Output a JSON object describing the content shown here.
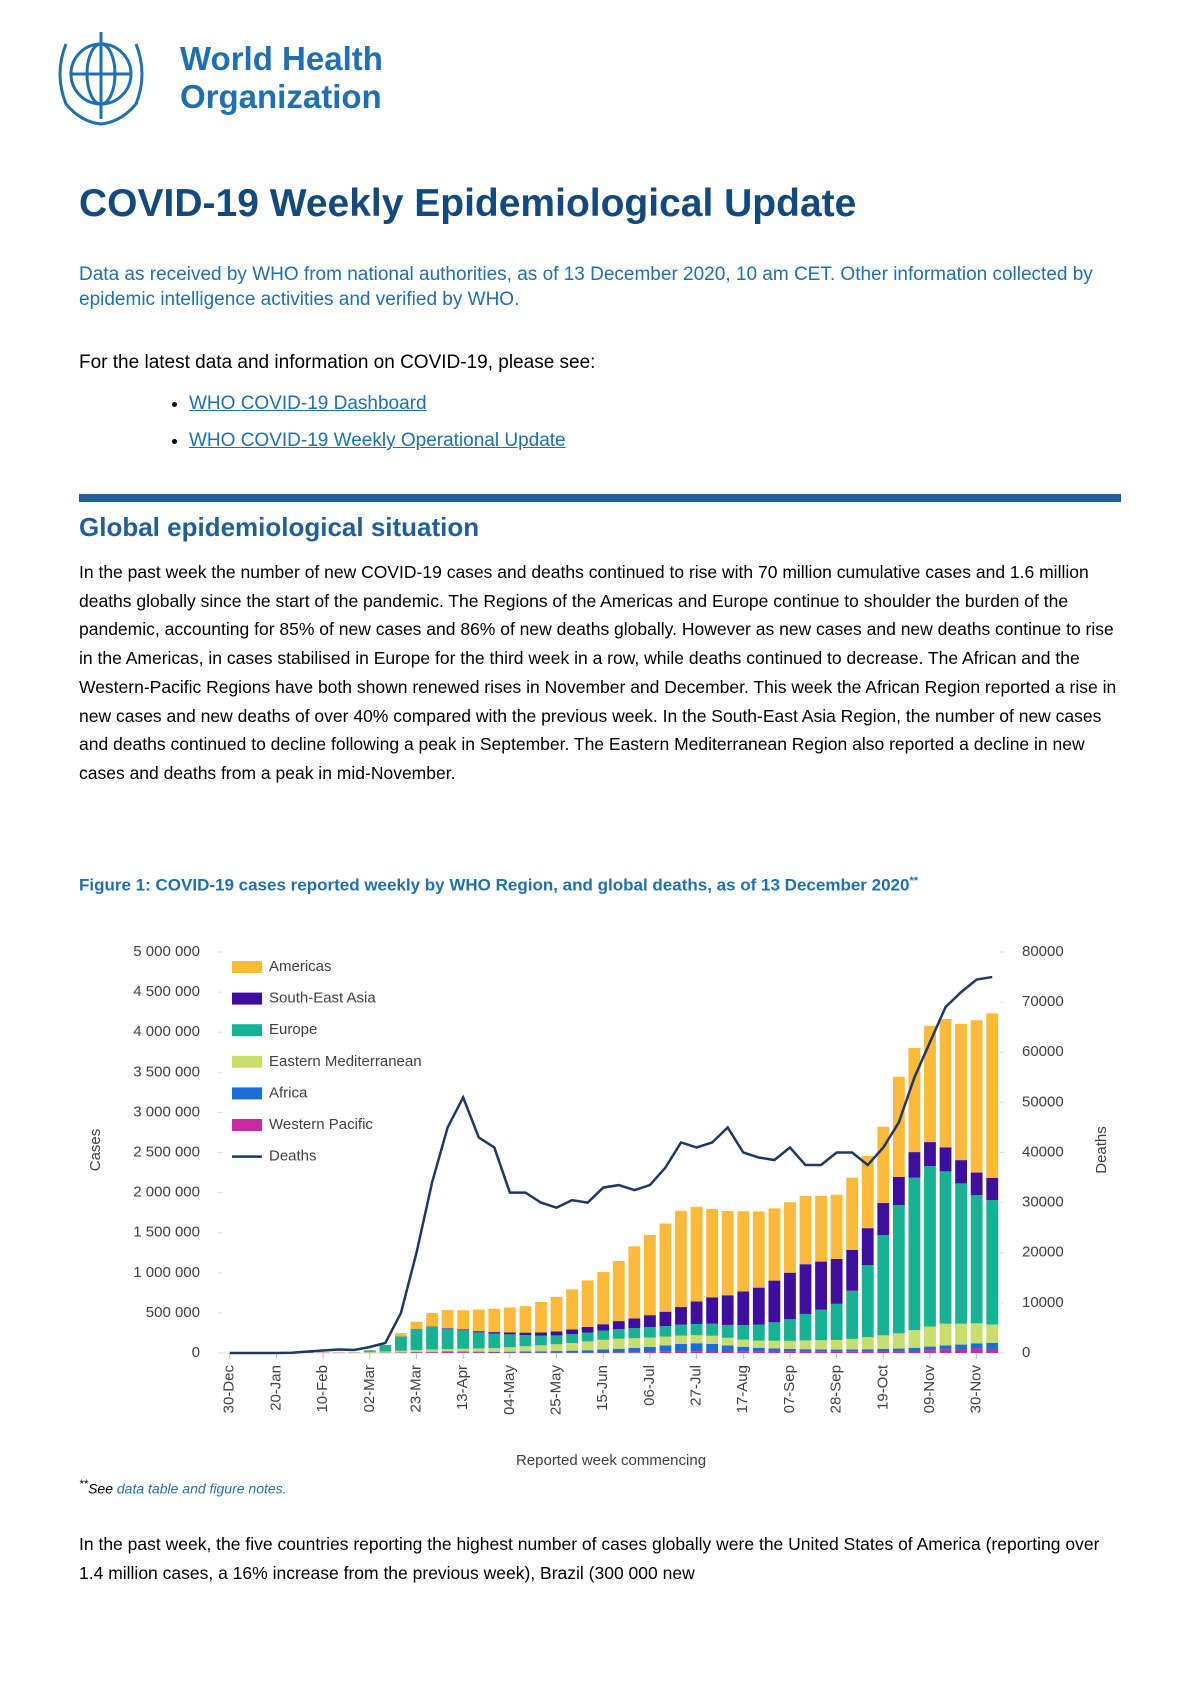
{
  "header": {
    "org_line1": "World Health",
    "org_line2": "Organization"
  },
  "title": "COVID-19 Weekly Epidemiological Update",
  "subtitle": "Data as received by WHO from national authorities, as of 13 December 2020, 10 am CET. Other information collected by epidemic intelligence activities and verified by WHO.",
  "links_intro": "For the latest data and information on COVID-19, please see:",
  "links": [
    "WHO COVID-19 Dashboard",
    "WHO COVID-19 Weekly Operational Update"
  ],
  "section_heading": "Global epidemiological situation",
  "paragraph": "In the past week the number of new COVID-19  cases and deaths continued to rise with 70 million cumulative cases and 1.6 million deaths globally since the start of the pandemic. The Regions of the Americas and Europe continue to shoulder the burden of the pandemic, accounting for 85% of new cases and 86% of new deaths globally. However as new cases and new deaths continue to rise in the Americas, in cases stabilised in Europe for the third week in a row, while deaths continued to decrease. The African and the Western-Pacific Regions have both shown renewed rises in November and December. This week the African Region reported a rise in new cases and new deaths of over 40% compared with the previous week. In the South-East Asia Region, the number of new cases and deaths continued to decline following a peak in September. The Eastern Mediterranean Region also reported a decline in new cases and deaths from a peak in mid-November.",
  "figure_caption": "Figure 1: COVID-19 cases reported weekly by WHO Region, and global deaths, as of 13 December 2020",
  "figure_caption_mark": "**",
  "chart_data": {
    "type": "stacked-bar-line",
    "x_label": "Reported week commencing",
    "y_label": "Cases",
    "y2_label": "Deaths",
    "categories": [
      "30-Dec",
      null,
      null,
      "20-Jan",
      null,
      null,
      "10-Feb",
      null,
      null,
      "02-Mar",
      null,
      null,
      "23-Mar",
      null,
      null,
      "13-Apr",
      null,
      null,
      "04-May",
      null,
      null,
      "25-May",
      null,
      null,
      "15-Jun",
      null,
      null,
      "06-Jul",
      null,
      null,
      "27-Jul",
      null,
      null,
      "17-Aug",
      null,
      null,
      "07-Sep",
      null,
      null,
      "28-Sep",
      null,
      null,
      "19-Oct",
      null,
      null,
      "09-Nov",
      null,
      null,
      "30-Nov",
      null
    ],
    "ylim": [
      0,
      5000000
    ],
    "yticks": [
      0,
      {
        "value": 500000,
        "label": "500 000"
      },
      {
        "value": 1000000,
        "label": "1 000 000"
      },
      {
        "value": 1500000,
        "label": "1 500 000"
      },
      {
        "value": 2000000,
        "label": "2 000 000"
      },
      {
        "value": 2500000,
        "label": "2 500 000"
      },
      {
        "value": 3000000,
        "label": "3 000 000"
      },
      {
        "value": 3500000,
        "label": "3 500 000"
      },
      {
        "value": 4000000,
        "label": "4 000 000"
      },
      {
        "value": 4500000,
        "label": "4 500 000"
      },
      {
        "value": 5000000,
        "label": "5 000 000"
      }
    ],
    "y2lim": [
      0,
      80000
    ],
    "y2ticks": [
      0,
      10000,
      20000,
      30000,
      40000,
      50000,
      60000,
      70000,
      80000
    ],
    "legend": "top-left",
    "series": [
      {
        "name": "Americas",
        "color": "#FDB93A",
        "type": "bar",
        "values": [
          0,
          0,
          0,
          5,
          1,
          2,
          0,
          0,
          10,
          100,
          1000,
          40000,
          90000,
          170000,
          230000,
          240000,
          270000,
          290000,
          310000,
          330000,
          380000,
          430000,
          500000,
          580000,
          650000,
          750000,
          900000,
          1000000,
          1100000,
          1200000,
          1180000,
          1100000,
          1050000,
          1000000,
          950000,
          900000,
          880000,
          850000,
          820000,
          800000,
          900000,
          900000,
          950000,
          1250000,
          1300000,
          1450000,
          1600000,
          1700000,
          1900000,
          2050000
        ]
      },
      {
        "name": "South-East Asia",
        "color": "#3E0E9E",
        "type": "bar",
        "values": [
          0,
          0,
          0,
          0,
          0,
          0,
          0,
          0,
          0,
          0,
          500,
          1000,
          3000,
          5000,
          8000,
          10000,
          15000,
          20000,
          25000,
          30000,
          40000,
          50000,
          60000,
          70000,
          80000,
          100000,
          120000,
          150000,
          180000,
          220000,
          280000,
          330000,
          370000,
          420000,
          460000,
          520000,
          580000,
          620000,
          600000,
          560000,
          510000,
          460000,
          400000,
          350000,
          320000,
          300000,
          300000,
          290000,
          280000,
          280000
        ]
      },
      {
        "name": "Europe",
        "color": "#16B293",
        "type": "bar",
        "values": [
          0,
          0,
          0,
          0,
          0,
          0,
          0,
          0,
          2000,
          20000,
          80000,
          180000,
          260000,
          280000,
          250000,
          230000,
          200000,
          180000,
          160000,
          140000,
          120000,
          110000,
          110000,
          110000,
          115000,
          120000,
          125000,
          130000,
          130000,
          135000,
          140000,
          150000,
          160000,
          180000,
          200000,
          230000,
          270000,
          330000,
          380000,
          450000,
          600000,
          900000,
          1250000,
          1600000,
          1900000,
          2000000,
          1900000,
          1750000,
          1600000,
          1550000
        ]
      },
      {
        "name": "Eastern Mediterranean",
        "color": "#C8DD6C",
        "type": "bar",
        "values": [
          0,
          0,
          0,
          0,
          0,
          0,
          0,
          0,
          5000,
          10000,
          15000,
          20000,
          25000,
          28000,
          30000,
          35000,
          40000,
          45000,
          55000,
          65000,
          75000,
          85000,
          95000,
          110000,
          120000,
          125000,
          120000,
          115000,
          110000,
          105000,
          100000,
          100000,
          95000,
          90000,
          90000,
          95000,
          100000,
          110000,
          115000,
          120000,
          130000,
          150000,
          170000,
          190000,
          220000,
          250000,
          270000,
          260000,
          250000,
          230000
        ]
      },
      {
        "name": "Africa",
        "color": "#1A6FD6",
        "type": "bar",
        "values": [
          0,
          0,
          0,
          0,
          0,
          0,
          0,
          0,
          0,
          0,
          300,
          2000,
          4000,
          6000,
          7000,
          8000,
          9000,
          10000,
          12000,
          14000,
          17000,
          20000,
          25000,
          30000,
          38000,
          45000,
          55000,
          65000,
          80000,
          95000,
          100000,
          90000,
          70000,
          55000,
          45000,
          40000,
          35000,
          32000,
          30000,
          28000,
          30000,
          30000,
          32000,
          35000,
          40000,
          45000,
          50000,
          55000,
          65000,
          75000
        ]
      },
      {
        "name": "Western Pacific",
        "color": "#C72C9E",
        "type": "bar",
        "values": [
          0,
          0,
          0,
          50,
          3000,
          4000,
          5000,
          4000,
          3000,
          3000,
          4000,
          5000,
          8000,
          10000,
          12000,
          10000,
          8000,
          6000,
          5000,
          5000,
          4000,
          4000,
          4000,
          5000,
          6000,
          8000,
          10000,
          12000,
          15000,
          18000,
          22000,
          25000,
          25000,
          23000,
          20000,
          18000,
          16000,
          15000,
          15000,
          15000,
          16000,
          17000,
          18000,
          20000,
          25000,
          35000,
          45000,
          50000,
          55000,
          50000
        ]
      },
      {
        "name": "Deaths",
        "color": "#1F3864",
        "type": "line",
        "axis": "y2",
        "values": [
          0,
          0,
          0,
          0,
          50,
          300,
          500,
          700,
          600,
          1200,
          2000,
          8000,
          20000,
          34000,
          45000,
          51000,
          43000,
          41000,
          32000,
          32000,
          30000,
          29000,
          30500,
          30000,
          33000,
          33500,
          32500,
          33500,
          37000,
          42000,
          41000,
          42000,
          45000,
          40000,
          39000,
          38500,
          41000,
          37500,
          37500,
          40000,
          40000,
          37500,
          41000,
          46000,
          55000,
          62000,
          69000,
          72000,
          74500,
          75000
        ]
      }
    ]
  },
  "footnote": {
    "mark": "**",
    "text": "See ",
    "link": "data table and figure notes."
  },
  "paragraph2": "In the past week, the five countries reporting the highest number of cases globally were the United States of America (reporting over 1.4 million cases, a 16% increase from the previous week), Brazil (300 000 new"
}
